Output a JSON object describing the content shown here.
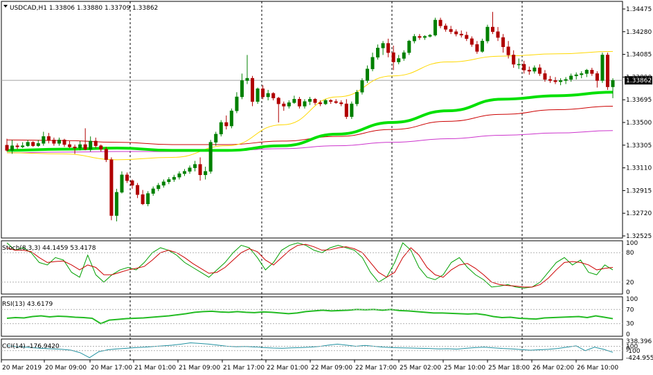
{
  "chart_data": {
    "type": "candlestick",
    "main": {
      "header": "USDCAD,H1  1.33806 1.33880 1.33709 1.33862",
      "current_price": "1.33862",
      "y_ticks": [
        "1.34475",
        "1.34280",
        "1.34085",
        "1.33890",
        "1.33695",
        "1.33500",
        "1.33305",
        "1.33110",
        "1.32915",
        "1.32720",
        "1.32525"
      ],
      "ylim": [
        1.32525,
        1.34475
      ],
      "colors": {
        "bull": "#008000",
        "bear": "#b00000",
        "ma_yellow": "#ffd800",
        "ma_green": "#00e000",
        "ma_red": "#cc0000",
        "ma_magenta": "#cc33cc",
        "price_line": "#a0a0a0"
      },
      "candles": [
        [
          1.33305,
          1.3336,
          1.3325,
          1.3326
        ],
        [
          1.3326,
          1.3335,
          1.3323,
          1.333
        ],
        [
          1.333,
          1.3332,
          1.3327,
          1.3329
        ],
        [
          1.3329,
          1.3333,
          1.3328,
          1.333
        ],
        [
          1.333,
          1.3335,
          1.3329,
          1.3333
        ],
        [
          1.3333,
          1.3334,
          1.3329,
          1.333
        ],
        [
          1.333,
          1.3335,
          1.3329,
          1.3332
        ],
        [
          1.3332,
          1.3342,
          1.333,
          1.3338
        ],
        [
          1.3338,
          1.3341,
          1.3332,
          1.3335
        ],
        [
          1.3335,
          1.3337,
          1.333,
          1.3332
        ],
        [
          1.3332,
          1.3337,
          1.333,
          1.3335
        ],
        [
          1.3335,
          1.3336,
          1.3329,
          1.3331
        ],
        [
          1.3331,
          1.3334,
          1.3328,
          1.3329
        ],
        [
          1.3329,
          1.3331,
          1.3323,
          1.3328
        ],
        [
          1.3328,
          1.3334,
          1.3326,
          1.3331
        ],
        [
          1.3331,
          1.3345,
          1.3326,
          1.3327
        ],
        [
          1.3327,
          1.3338,
          1.3325,
          1.3334
        ],
        [
          1.3334,
          1.3337,
          1.3328,
          1.333
        ],
        [
          1.333,
          1.3331,
          1.3325,
          1.3327
        ],
        [
          1.3327,
          1.3329,
          1.3316,
          1.3318
        ],
        [
          1.3318,
          1.332,
          1.3266,
          1.327
        ],
        [
          1.327,
          1.3293,
          1.3265,
          1.329
        ],
        [
          1.329,
          1.3308,
          1.3289,
          1.3305
        ],
        [
          1.3305,
          1.3307,
          1.3298,
          1.33
        ],
        [
          1.33,
          1.3301,
          1.3293,
          1.3296
        ],
        [
          1.3296,
          1.3298,
          1.3285,
          1.3288
        ],
        [
          1.3288,
          1.3292,
          1.3279,
          1.328
        ],
        [
          1.328,
          1.3291,
          1.3278,
          1.3289
        ],
        [
          1.3289,
          1.3295,
          1.3287,
          1.3293
        ],
        [
          1.3293,
          1.3298,
          1.3291,
          1.3296
        ],
        [
          1.3296,
          1.3301,
          1.3294,
          1.3299
        ],
        [
          1.3299,
          1.3303,
          1.3297,
          1.3301
        ],
        [
          1.3301,
          1.3305,
          1.3299,
          1.3303
        ],
        [
          1.3303,
          1.3308,
          1.3301,
          1.3306
        ],
        [
          1.3306,
          1.331,
          1.3304,
          1.3308
        ],
        [
          1.3308,
          1.3313,
          1.3306,
          1.3311
        ],
        [
          1.3311,
          1.3317,
          1.3308,
          1.3314
        ],
        [
          1.3314,
          1.332,
          1.33,
          1.3305
        ],
        [
          1.3305,
          1.3312,
          1.3301,
          1.3308
        ],
        [
          1.3308,
          1.3335,
          1.3306,
          1.3333
        ],
        [
          1.3333,
          1.3342,
          1.333,
          1.334
        ],
        [
          1.334,
          1.3352,
          1.3338,
          1.335
        ],
        [
          1.335,
          1.3356,
          1.3344,
          1.3347
        ],
        [
          1.3347,
          1.3362,
          1.3345,
          1.336
        ],
        [
          1.336,
          1.3376,
          1.3358,
          1.3372
        ],
        [
          1.3372,
          1.3392,
          1.337,
          1.3386
        ],
        [
          1.3386,
          1.3408,
          1.3383,
          1.3388
        ],
        [
          1.3388,
          1.339,
          1.3364,
          1.3368
        ],
        [
          1.3368,
          1.338,
          1.3366,
          1.3379
        ],
        [
          1.3379,
          1.3382,
          1.337,
          1.3372
        ],
        [
          1.3372,
          1.3378,
          1.3369,
          1.3375
        ],
        [
          1.3375,
          1.3376,
          1.3369,
          1.3371
        ],
        [
          1.3371,
          1.3372,
          1.335,
          1.3366
        ],
        [
          1.3366,
          1.3368,
          1.336,
          1.3364
        ],
        [
          1.3364,
          1.3369,
          1.3362,
          1.3367
        ],
        [
          1.3367,
          1.3373,
          1.3366,
          1.337
        ],
        [
          1.337,
          1.3372,
          1.3362,
          1.3364
        ],
        [
          1.3364,
          1.337,
          1.3362,
          1.3368
        ],
        [
          1.3368,
          1.3372,
          1.3365,
          1.337
        ],
        [
          1.337,
          1.3371,
          1.3365,
          1.3367
        ],
        [
          1.3367,
          1.3369,
          1.3364,
          1.3366
        ],
        [
          1.3366,
          1.337,
          1.3365,
          1.3369
        ],
        [
          1.3369,
          1.337,
          1.3366,
          1.3368
        ],
        [
          1.3368,
          1.337,
          1.3366,
          1.3367
        ],
        [
          1.3367,
          1.3369,
          1.3364,
          1.3366
        ],
        [
          1.3366,
          1.337,
          1.3353,
          1.3355
        ],
        [
          1.3355,
          1.3368,
          1.3353,
          1.3366
        ],
        [
          1.3366,
          1.3378,
          1.3364,
          1.3376
        ],
        [
          1.3376,
          1.3388,
          1.3374,
          1.3386
        ],
        [
          1.3386,
          1.3399,
          1.3384,
          1.3396
        ],
        [
          1.3396,
          1.341,
          1.3394,
          1.3406
        ],
        [
          1.3406,
          1.3417,
          1.3404,
          1.3414
        ],
        [
          1.3414,
          1.342,
          1.3408,
          1.3418
        ],
        [
          1.3418,
          1.3422,
          1.3406,
          1.341
        ],
        [
          1.341,
          1.3416,
          1.3395,
          1.3402
        ],
        [
          1.3402,
          1.3408,
          1.34,
          1.3405
        ],
        [
          1.3405,
          1.3412,
          1.3403,
          1.341
        ],
        [
          1.341,
          1.3421,
          1.3408,
          1.342
        ],
        [
          1.342,
          1.3426,
          1.3418,
          1.3424
        ],
        [
          1.3424,
          1.3426,
          1.3421,
          1.3423
        ],
        [
          1.3423,
          1.3425,
          1.3421,
          1.3424
        ],
        [
          1.3424,
          1.3426,
          1.3423,
          1.3425
        ],
        [
          1.3425,
          1.344,
          1.3424,
          1.3438
        ],
        [
          1.3438,
          1.344,
          1.3431,
          1.3433
        ],
        [
          1.3433,
          1.3435,
          1.3428,
          1.343
        ],
        [
          1.343,
          1.3433,
          1.3426,
          1.3428
        ],
        [
          1.3428,
          1.343,
          1.3424,
          1.3426
        ],
        [
          1.3426,
          1.3429,
          1.3423,
          1.3425
        ],
        [
          1.3425,
          1.3428,
          1.342,
          1.3422
        ],
        [
          1.3422,
          1.3424,
          1.3415,
          1.3417
        ],
        [
          1.3417,
          1.342,
          1.3409,
          1.3411
        ],
        [
          1.3411,
          1.3422,
          1.341,
          1.342
        ],
        [
          1.342,
          1.3434,
          1.3418,
          1.3432
        ],
        [
          1.3432,
          1.3445,
          1.3426,
          1.3428
        ],
        [
          1.3428,
          1.3432,
          1.342,
          1.3423
        ],
        [
          1.3423,
          1.3426,
          1.341,
          1.3415
        ],
        [
          1.3415,
          1.342,
          1.3405,
          1.3408
        ],
        [
          1.3408,
          1.3412,
          1.3397,
          1.34
        ],
        [
          1.34,
          1.3405,
          1.3396,
          1.34
        ],
        [
          1.34,
          1.3403,
          1.3392,
          1.3395
        ],
        [
          1.3395,
          1.3398,
          1.3391,
          1.3394
        ],
        [
          1.3394,
          1.3399,
          1.3392,
          1.3397
        ],
        [
          1.3397,
          1.34,
          1.339,
          1.3392
        ],
        [
          1.3392,
          1.3395,
          1.3385,
          1.3387
        ],
        [
          1.3387,
          1.339,
          1.3384,
          1.3386
        ],
        [
          1.3386,
          1.3389,
          1.3383,
          1.3385
        ],
        [
          1.3385,
          1.3388,
          1.3382,
          1.3386
        ],
        [
          1.3386,
          1.3389,
          1.3383,
          1.3387
        ],
        [
          1.3387,
          1.3392,
          1.3385,
          1.339
        ],
        [
          1.339,
          1.3393,
          1.3387,
          1.3391
        ],
        [
          1.3391,
          1.3394,
          1.3388,
          1.3392
        ],
        [
          1.3392,
          1.3396,
          1.3389,
          1.3395
        ],
        [
          1.3395,
          1.3397,
          1.339,
          1.3392
        ],
        [
          1.3392,
          1.3394,
          1.338,
          1.3386
        ],
        [
          1.3386,
          1.341,
          1.3384,
          1.3408
        ],
        [
          1.3408,
          1.341,
          1.3378,
          1.33806
        ],
        [
          1.33806,
          1.3388,
          1.33709,
          1.33862
        ]
      ],
      "ma_yellow": [
        [
          1.3324,
          1.3323,
          1.3318,
          1.332,
          1.333,
          1.3348,
          1.3372,
          1.339,
          1.3402,
          1.3407,
          1.3409,
          1.3411
        ]
      ],
      "ma_green": [
        [
          1.3326,
          1.3327,
          1.3328,
          1.3326,
          1.3326,
          1.333,
          1.334,
          1.335,
          1.336,
          1.337,
          1.3373,
          1.3376
        ]
      ],
      "ma_red": [
        [
          1.3335,
          1.33345,
          1.3333,
          1.3331,
          1.3331,
          1.3334,
          1.3338,
          1.3344,
          1.3351,
          1.3357,
          1.3361,
          1.3364
        ]
      ],
      "ma_magenta": [
        [
          1.3324,
          1.33245,
          1.3325,
          1.3325,
          1.3326,
          1.33275,
          1.333,
          1.3333,
          1.3336,
          1.3339,
          1.3341,
          1.3343
        ]
      ]
    },
    "stoch": {
      "header": "Stoch(8,3,3) 44.1459 53.4178",
      "ticks": [
        "100",
        "80",
        "20",
        "0"
      ],
      "k": [
        100,
        85,
        90,
        80,
        60,
        55,
        70,
        65,
        40,
        30,
        75,
        35,
        20,
        35,
        45,
        50,
        45,
        60,
        80,
        90,
        85,
        75,
        60,
        50,
        40,
        30,
        45,
        60,
        80,
        95,
        90,
        70,
        45,
        60,
        85,
        95,
        100,
        95,
        85,
        80,
        90,
        95,
        90,
        85,
        70,
        40,
        20,
        30,
        60,
        100,
        85,
        50,
        30,
        25,
        35,
        60,
        70,
        50,
        35,
        25,
        10,
        12,
        15,
        10,
        8,
        10,
        20,
        40,
        60,
        70,
        55,
        65,
        40,
        35,
        55,
        45
      ],
      "d": [
        90,
        85,
        85,
        82,
        70,
        60,
        62,
        63,
        55,
        45,
        55,
        50,
        35,
        35,
        40,
        45,
        48,
        52,
        65,
        80,
        85,
        80,
        70,
        58,
        48,
        38,
        40,
        50,
        65,
        80,
        88,
        82,
        65,
        55,
        70,
        85,
        95,
        97,
        92,
        85,
        86,
        90,
        92,
        88,
        80,
        60,
        40,
        30,
        40,
        70,
        90,
        75,
        50,
        35,
        30,
        45,
        55,
        58,
        48,
        35,
        20,
        15,
        13,
        12,
        10,
        10,
        15,
        28,
        45,
        60,
        62,
        60,
        55,
        45,
        48,
        50
      ]
    },
    "rsi": {
      "header": "RSI(13) 43.6179",
      "ticks": [
        "100",
        "70",
        "30",
        "0"
      ],
      "values": [
        45,
        47,
        46,
        50,
        52,
        49,
        51,
        50,
        48,
        47,
        45,
        30,
        40,
        42,
        44,
        45,
        46,
        48,
        50,
        52,
        55,
        58,
        62,
        64,
        65,
        63,
        62,
        64,
        62,
        61,
        63,
        62,
        60,
        58,
        60,
        64,
        66,
        68,
        66,
        67,
        68,
        70,
        69,
        70,
        68,
        70,
        67,
        66,
        64,
        62,
        60,
        60,
        59,
        58,
        57,
        58,
        55,
        50,
        47,
        48,
        45,
        44,
        43,
        46,
        47,
        48,
        49,
        50,
        47,
        52,
        48,
        44
      ]
    },
    "cci": {
      "header": "CCI(14) -176.9420",
      "ticks": [
        "338.396",
        "100",
        "0",
        "-100",
        "-424.955"
      ],
      "values": [
        120,
        90,
        60,
        30,
        0,
        -20,
        -40,
        -80,
        -200,
        -424,
        -150,
        -60,
        -20,
        10,
        40,
        60,
        90,
        120,
        150,
        200,
        260,
        230,
        200,
        150,
        100,
        80,
        90,
        70,
        40,
        20,
        10,
        30,
        40,
        60,
        90,
        150,
        200,
        150,
        100,
        140,
        100,
        60,
        40,
        30,
        20,
        10,
        0,
        -20,
        -10,
        -30,
        10,
        40,
        60,
        30,
        0,
        -20,
        -50,
        -80,
        -60,
        -40,
        0,
        60,
        120,
        -100,
        60,
        -40,
        -176
      ]
    },
    "x_labels": [
      "20 Mar 2019",
      "20 Mar 09:00",
      "20 Mar 17:00",
      "21 Mar 01:00",
      "21 Mar 09:00",
      "21 Mar 17:00",
      "22 Mar 01:00",
      "22 Mar 09:00",
      "22 Mar 17:00",
      "25 Mar 02:00",
      "25 Mar 10:00",
      "25 Mar 18:00",
      "26 Mar 02:00",
      "26 Mar 10:00"
    ],
    "x_label_candle_index": [
      0,
      10,
      20,
      30,
      40,
      50,
      60,
      70,
      80,
      90,
      100,
      110,
      120,
      130
    ]
  }
}
